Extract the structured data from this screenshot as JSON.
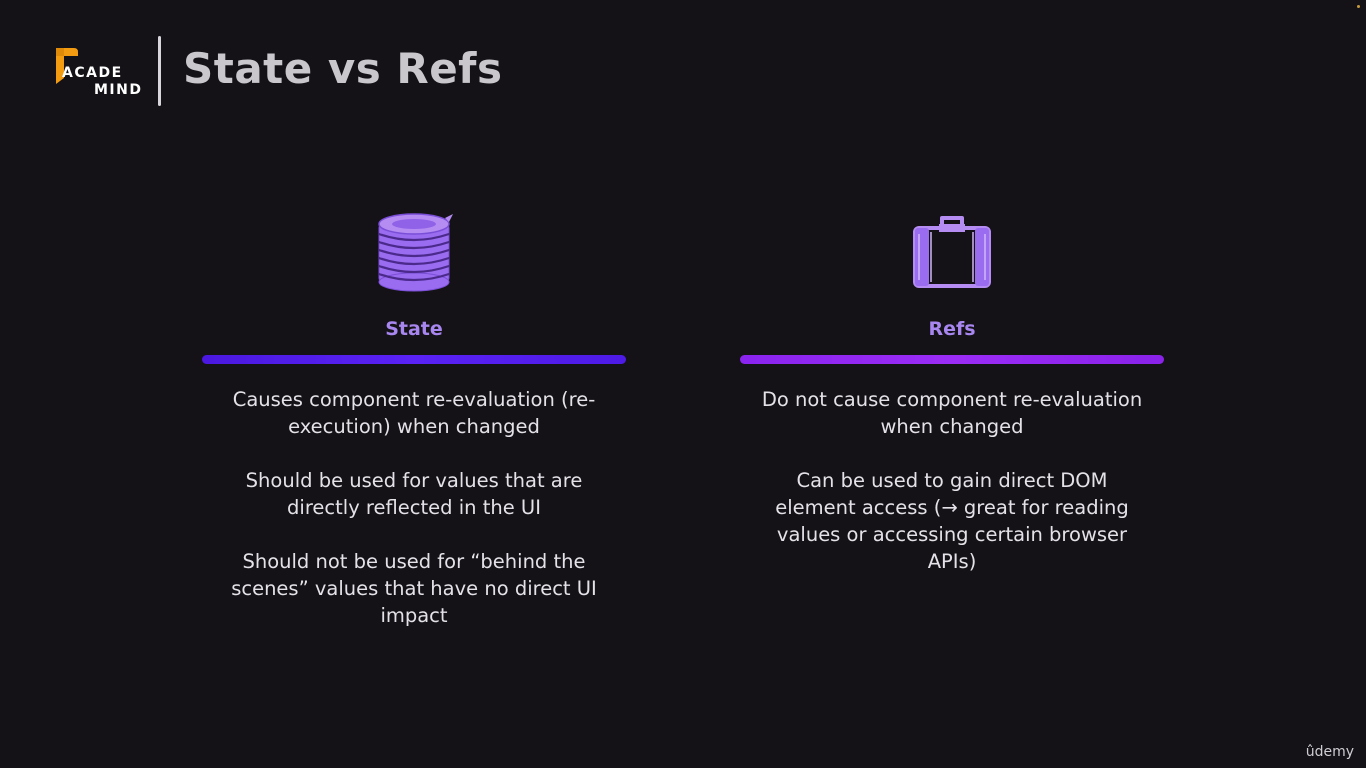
{
  "header": {
    "logo": {
      "line1": "ACADE",
      "line2": "MIND",
      "accent_color": "#f39c12"
    },
    "title": "State vs Refs"
  },
  "columns": [
    {
      "icon": "database-icon",
      "heading": "State",
      "bar_color": "#5a22f5",
      "points": [
        "Causes component re-evaluation (re-execution) when changed",
        "Should be used for values that are directly reflected in the UI",
        "Should not be used for “behind the scenes” values that have no direct UI impact"
      ]
    },
    {
      "icon": "briefcase-icon",
      "heading": "Refs",
      "bar_color": "#9b2cf7",
      "points": [
        "Do not cause component re-evaluation when changed",
        "Can be used to gain direct DOM element access (→ great for reading values or accessing certain browser APIs)"
      ]
    }
  ],
  "footer": {
    "watermark": "ûdemy"
  },
  "colors": {
    "background": "#141216",
    "heading_purple": "#a886f0",
    "icon_purple": "#9a6cf0",
    "icon_purple_light": "#b48cf2"
  }
}
